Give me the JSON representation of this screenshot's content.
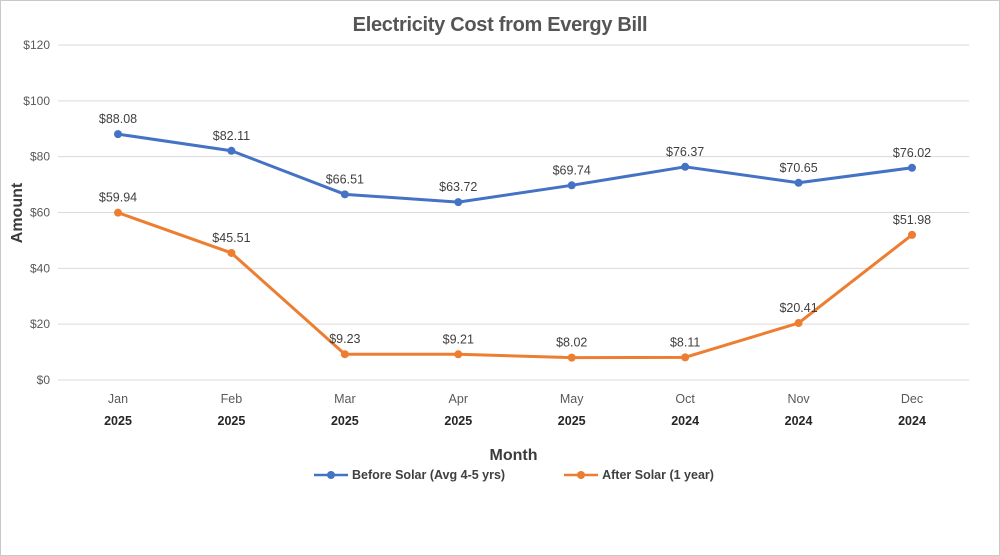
{
  "chart_data": {
    "type": "line",
    "title": "Electricity Cost from Evergy Bill",
    "xlabel": "Month",
    "ylabel": "Amount",
    "ylim": [
      0,
      120
    ],
    "ytick_step": 20,
    "ytick_labels": [
      "$0",
      "$20",
      "$40",
      "$60",
      "$80",
      "$100",
      "$120"
    ],
    "grid": true,
    "legend_position": "bottom",
    "categories": [
      {
        "month": "Jan",
        "year": "2025"
      },
      {
        "month": "Feb",
        "year": "2025"
      },
      {
        "month": "Mar",
        "year": "2025"
      },
      {
        "month": "Apr",
        "year": "2025"
      },
      {
        "month": "May",
        "year": "2025"
      },
      {
        "month": "Oct",
        "year": "2024"
      },
      {
        "month": "Nov",
        "year": "2024"
      },
      {
        "month": "Dec",
        "year": "2024"
      }
    ],
    "series": [
      {
        "name": "Before Solar (Avg 4-5 yrs)",
        "color": "#4472C4",
        "values": [
          88.08,
          82.11,
          66.51,
          63.72,
          69.74,
          76.37,
          70.65,
          76.02
        ],
        "point_labels": [
          "$88.08",
          "$82.11",
          "$66.51",
          "$63.72",
          "$69.74",
          "$76.37",
          "$70.65",
          "$76.02"
        ]
      },
      {
        "name": "After Solar (1 year)",
        "color": "#ED7D31",
        "values": [
          59.94,
          45.51,
          9.23,
          9.21,
          8.02,
          8.11,
          20.41,
          51.98
        ],
        "point_labels": [
          "$59.94",
          "$45.51",
          "$9.23",
          "$9.21",
          "$8.02",
          "$8.11",
          "$20.41",
          "$51.98"
        ]
      }
    ]
  },
  "colors": {
    "grid": "#D9D9D9",
    "title_text": "#555555",
    "axis_title_text": "#3b3b3b",
    "tick_text": "#595959",
    "month_text": "#595959",
    "year_text": "#262626",
    "data_label_text": "#404040",
    "legend_text": "#404040",
    "border": "#c9c9c9",
    "background": "#ffffff"
  }
}
